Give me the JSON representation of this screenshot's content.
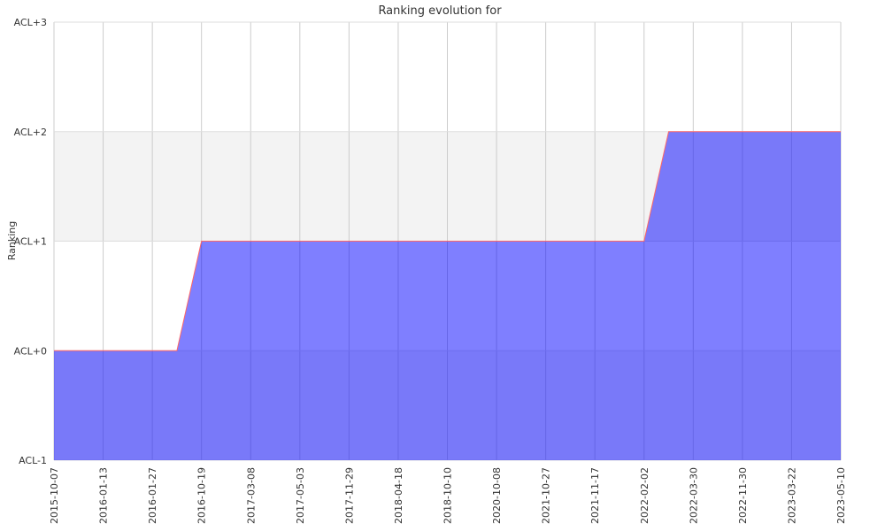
{
  "chart_data": {
    "type": "area",
    "title": "Ranking evolution for",
    "xlabel": "",
    "ylabel": "Ranking",
    "y_categories": [
      "ACL-1",
      "ACL+0",
      "ACL+1",
      "ACL+2",
      "ACL+3"
    ],
    "ylim": [
      0,
      4
    ],
    "x_tick_labels": [
      "2015-10-07",
      "2016-01-13",
      "2016-01-27",
      "2016-10-19",
      "2017-03-08",
      "2017-05-03",
      "2017-11-29",
      "2018-04-18",
      "2018-10-10",
      "2020-10-08",
      "2021-10-27",
      "2021-11-17",
      "2022-02-02",
      "2022-03-30",
      "2022-11-30",
      "2023-03-22",
      "2023-05-10"
    ],
    "x_positions": [
      0,
      1,
      2,
      2.5,
      3,
      4,
      5,
      6,
      7,
      8,
      9,
      10,
      11,
      12,
      12.5,
      13,
      14,
      15,
      16
    ],
    "y_values": [
      1,
      1,
      1,
      1,
      2,
      2,
      2,
      2,
      2,
      2,
      2,
      2,
      2,
      2,
      3,
      3,
      3,
      3,
      3
    ],
    "grid": true,
    "band_colors": [
      "#f3f3f3",
      "#ffffff"
    ],
    "fill_color": "#0000ff",
    "fill_opacity": 0.5,
    "line_color": "#ff6666"
  }
}
